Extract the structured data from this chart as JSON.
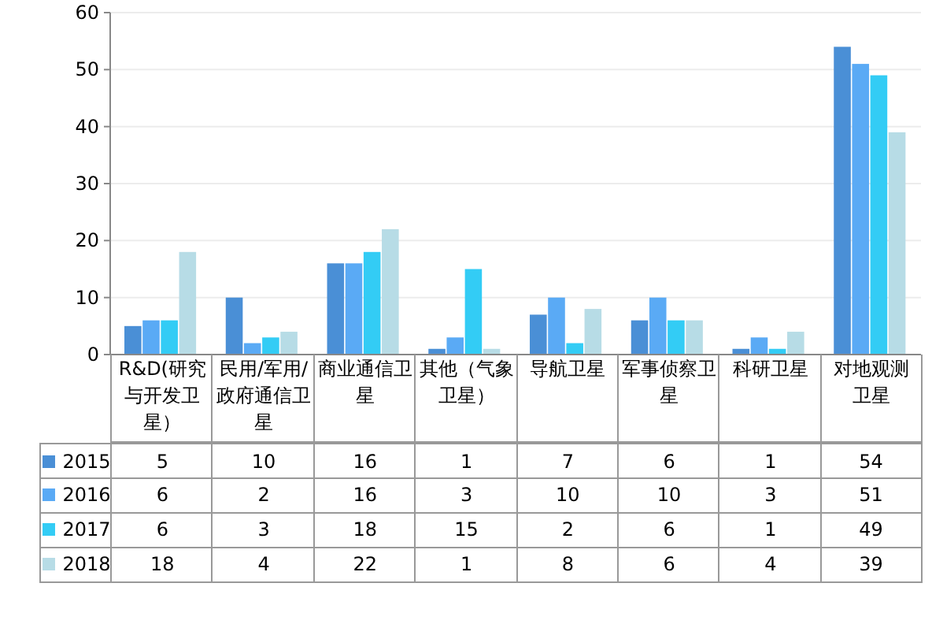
{
  "chart_data": {
    "type": "bar",
    "categories": [
      "R&D(研究与开发卫星）",
      "民用/军用/政府通信卫星",
      "商业通信卫星",
      "其他（气象卫星）",
      "导航卫星",
      "军事侦察卫星",
      "科研卫星",
      "对地观测卫星"
    ],
    "series": [
      {
        "name": "2015",
        "color": "#4a8fd6",
        "values": [
          5,
          10,
          16,
          1,
          7,
          6,
          1,
          54
        ]
      },
      {
        "name": "2016",
        "color": "#5aaaf5",
        "values": [
          6,
          2,
          16,
          3,
          10,
          10,
          3,
          51
        ]
      },
      {
        "name": "2017",
        "color": "#33ccf5",
        "values": [
          6,
          3,
          18,
          15,
          2,
          6,
          1,
          49
        ]
      },
      {
        "name": "2018",
        "color": "#b7dce6",
        "values": [
          18,
          4,
          22,
          1,
          8,
          6,
          4,
          39
        ]
      }
    ],
    "ylim": [
      0,
      60
    ],
    "yticks": [
      0,
      10,
      20,
      30,
      40,
      50,
      60
    ],
    "grid": "y",
    "legend": "bottom",
    "data_labels": true
  }
}
